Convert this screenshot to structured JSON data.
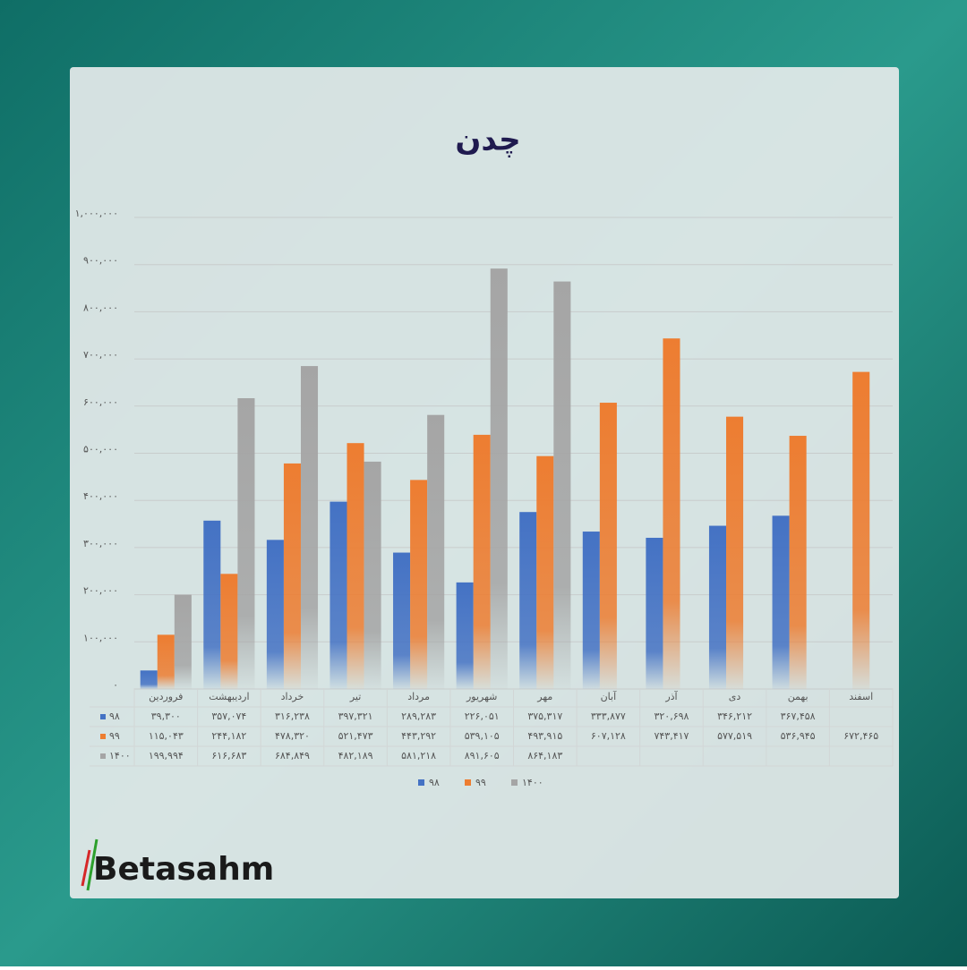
{
  "chart_data": {
    "type": "bar",
    "title": "چدن",
    "categories": [
      "فروردین",
      "اردیبهشت",
      "خرداد",
      "تیر",
      "مرداد",
      "شهریور",
      "مهر",
      "آبان",
      "آذر",
      "دی",
      "بهمن",
      "اسفند"
    ],
    "series": [
      {
        "name": "۹۸",
        "color": "#4472c4",
        "values": [
          39300,
          357074,
          316238,
          397321,
          289283,
          226051,
          375317,
          333877,
          320698,
          346212,
          367458,
          null
        ],
        "value_labels": [
          "۳۹,۳۰۰",
          "۳۵۷,۰۷۴",
          "۳۱۶,۲۳۸",
          "۳۹۷,۳۲۱",
          "۲۸۹,۲۸۳",
          "۲۲۶,۰۵۱",
          "۳۷۵,۳۱۷",
          "۳۳۳,۸۷۷",
          "۳۲۰,۶۹۸",
          "۳۴۶,۲۱۲",
          "۳۶۷,۴۵۸",
          null
        ]
      },
      {
        "name": "۹۹",
        "color": "#ed7d31",
        "values": [
          115043,
          244182,
          478320,
          521473,
          443292,
          539105,
          493915,
          607128,
          743417,
          577519,
          536945,
          672465
        ],
        "value_labels": [
          "۱۱۵,۰۴۳",
          "۲۴۴,۱۸۲",
          "۴۷۸,۳۲۰",
          "۵۲۱,۴۷۳",
          "۴۴۳,۲۹۲",
          "۵۳۹,۱۰۵",
          "۴۹۳,۹۱۵",
          "۶۰۷,۱۲۸",
          "۷۴۳,۴۱۷",
          "۵۷۷,۵۱۹",
          "۵۳۶,۹۴۵",
          "۶۷۲,۴۶۵"
        ]
      },
      {
        "name": "۱۴۰۰",
        "color": "#a5a5a5",
        "values": [
          199994,
          616683,
          684849,
          482189,
          581218,
          891605,
          864183,
          null,
          null,
          null,
          null,
          null
        ],
        "value_labels": [
          "۱۹۹,۹۹۴",
          "۶۱۶,۶۸۳",
          "۶۸۴,۸۴۹",
          "۴۸۲,۱۸۹",
          "۵۸۱,۲۱۸",
          "۸۹۱,۶۰۵",
          "۸۶۴,۱۸۳",
          null,
          null,
          null,
          null,
          null
        ]
      }
    ],
    "ylim": [
      0,
      1000000
    ],
    "yticks": [
      {
        "value": 0,
        "label": "۰"
      },
      {
        "value": 100000,
        "label": "۱۰۰,۰۰۰"
      },
      {
        "value": 200000,
        "label": "۲۰۰,۰۰۰"
      },
      {
        "value": 300000,
        "label": "۳۰۰,۰۰۰"
      },
      {
        "value": 400000,
        "label": "۴۰۰,۰۰۰"
      },
      {
        "value": 500000,
        "label": "۵۰۰,۰۰۰"
      },
      {
        "value": 600000,
        "label": "۶۰۰,۰۰۰"
      },
      {
        "value": 700000,
        "label": "۷۰۰,۰۰۰"
      },
      {
        "value": 800000,
        "label": "۸۰۰,۰۰۰"
      },
      {
        "value": 900000,
        "label": "۹۰۰,۰۰۰"
      },
      {
        "value": 1000000,
        "label": "۱,۰۰۰,۰۰۰"
      }
    ],
    "grid": true,
    "legend": "bottom"
  },
  "brand": "Betasahm"
}
